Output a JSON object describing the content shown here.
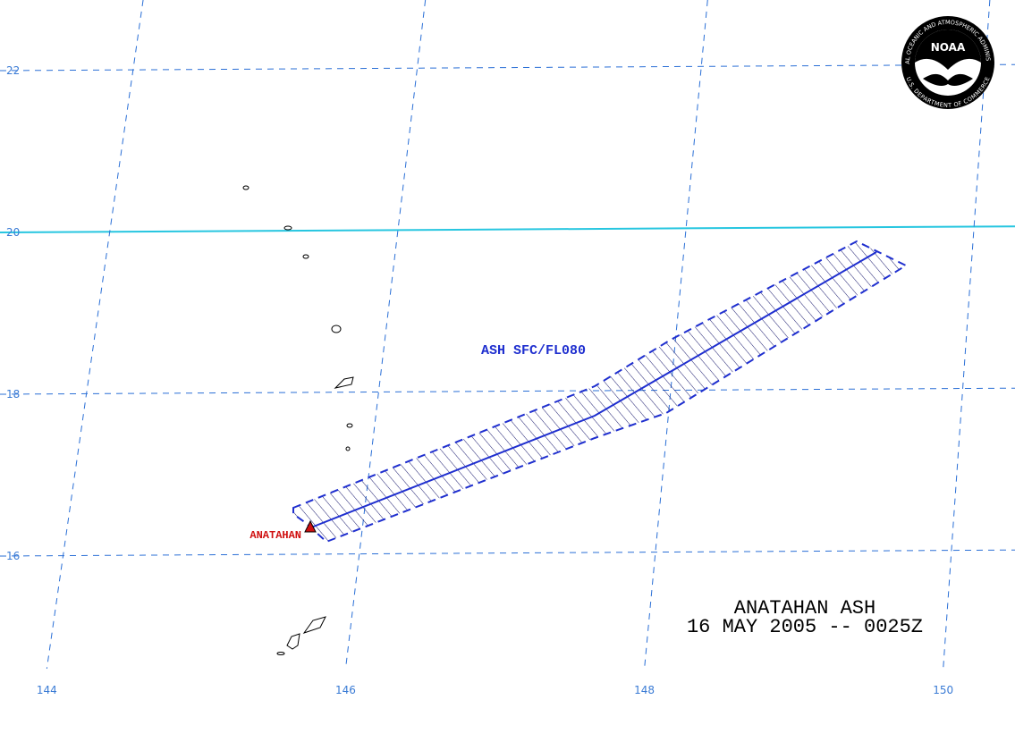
{
  "map": {
    "title": "ANATAHAN ASH",
    "subtitle": "16 MAY 2005 -- 0025Z",
    "ash_label": "ASH SFC/FL080",
    "volcano_label": "ANATAHAN",
    "latitudes": [
      22,
      20,
      18,
      16
    ],
    "longitudes": [
      144,
      146,
      148,
      150
    ],
    "logo": {
      "name": "NOAA",
      "ring_top": "NATIONAL OCEANIC AND ATMOSPHERIC ADMINISTRATION",
      "ring_bottom": "U.S. DEPARTMENT OF COMMERCE"
    }
  }
}
